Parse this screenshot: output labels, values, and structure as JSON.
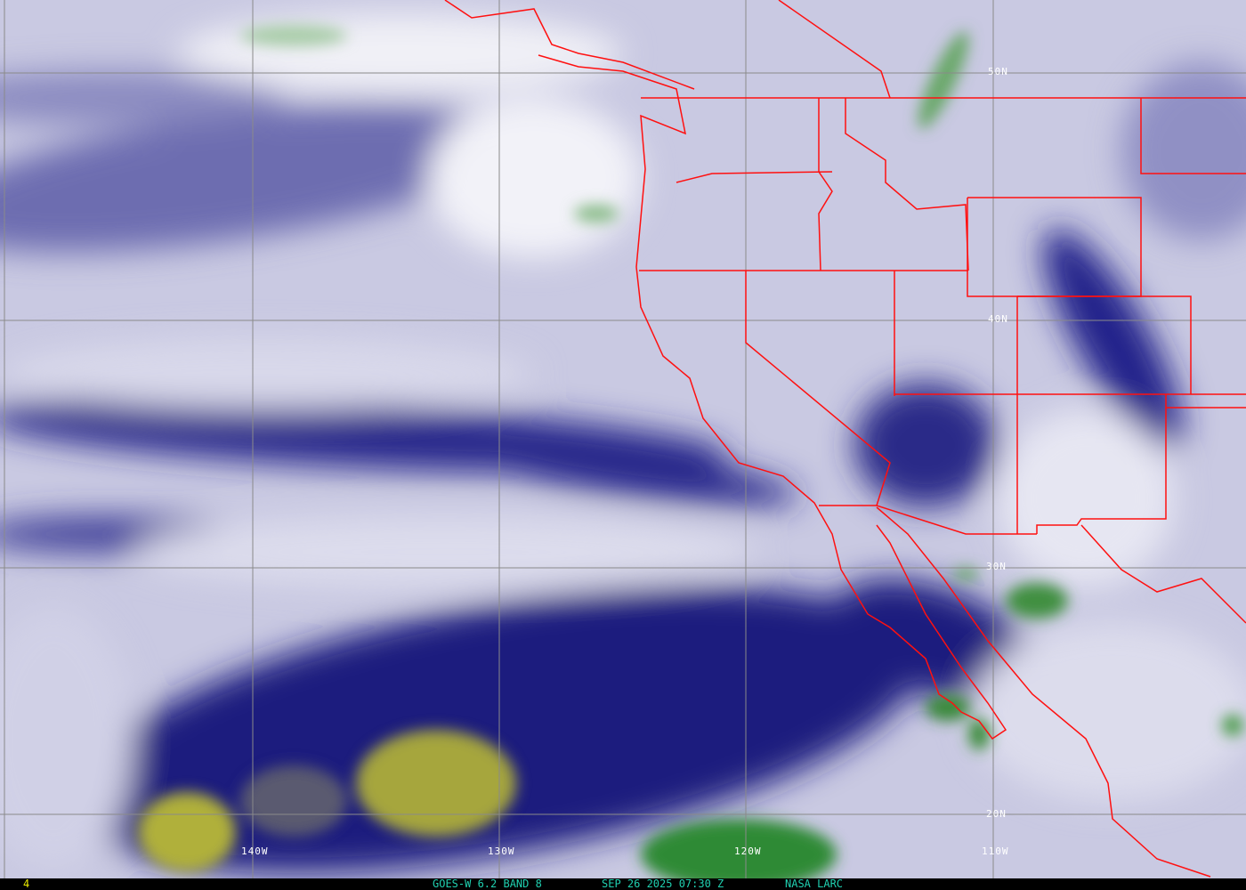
{
  "image": {
    "satellite": "GOES-W",
    "channel": "6.2",
    "band": "BAND 8",
    "footer_left": "4",
    "footer_product": "GOES-W 6.2 BAND 8",
    "footer_time": "SEP 26 2025 07:30 Z",
    "footer_source": "NASA LARC"
  },
  "grid": {
    "latitude_labels": [
      "50N",
      "40N",
      "30N",
      "20N"
    ],
    "longitude_labels": [
      "140W",
      "130W",
      "120W",
      "110W"
    ]
  },
  "colors": {
    "background_moist": "#c9c9e2",
    "dry_band": "#1a1a7e",
    "very_dry": "#a8a83a",
    "cold_cloud": "#3a8a3a",
    "boundaries": "#ff1010",
    "grid": "#8a8a8a",
    "footer_text": "#20d0b0",
    "footer_number": "#e8e800"
  }
}
